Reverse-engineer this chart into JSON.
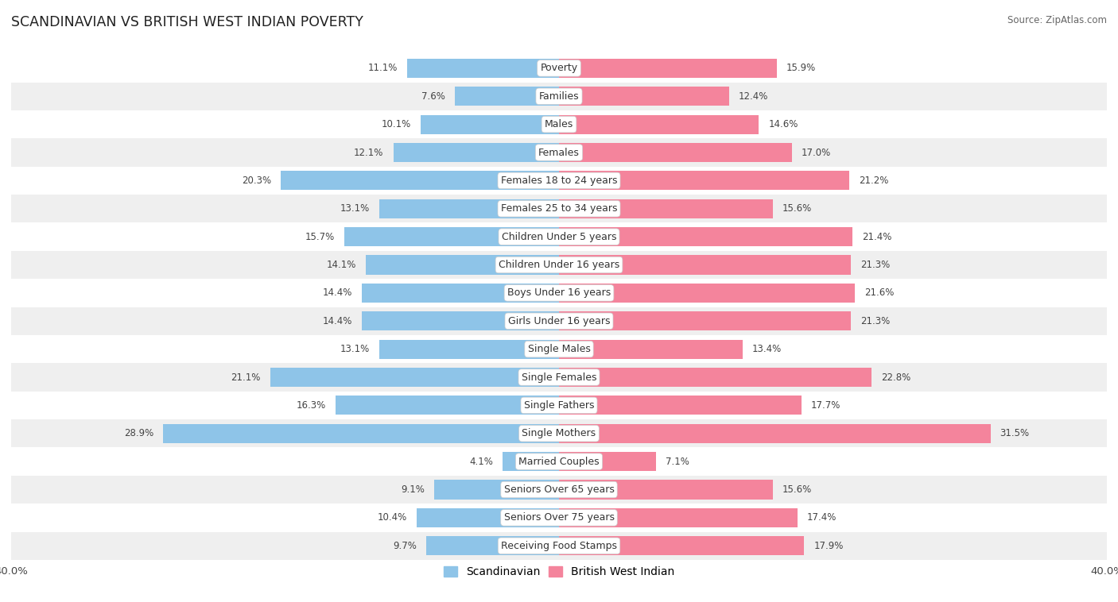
{
  "title": "SCANDINAVIAN VS BRITISH WEST INDIAN POVERTY",
  "source": "Source: ZipAtlas.com",
  "categories": [
    "Poverty",
    "Families",
    "Males",
    "Females",
    "Females 18 to 24 years",
    "Females 25 to 34 years",
    "Children Under 5 years",
    "Children Under 16 years",
    "Boys Under 16 years",
    "Girls Under 16 years",
    "Single Males",
    "Single Females",
    "Single Fathers",
    "Single Mothers",
    "Married Couples",
    "Seniors Over 65 years",
    "Seniors Over 75 years",
    "Receiving Food Stamps"
  ],
  "scandinavian": [
    11.1,
    7.6,
    10.1,
    12.1,
    20.3,
    13.1,
    15.7,
    14.1,
    14.4,
    14.4,
    13.1,
    21.1,
    16.3,
    28.9,
    4.1,
    9.1,
    10.4,
    9.7
  ],
  "british_west_indian": [
    15.9,
    12.4,
    14.6,
    17.0,
    21.2,
    15.6,
    21.4,
    21.3,
    21.6,
    21.3,
    13.4,
    22.8,
    17.7,
    31.5,
    7.1,
    15.6,
    17.4,
    17.9
  ],
  "xlim": 40.0,
  "bar_height": 0.68,
  "scandinavian_color": "#8EC4E8",
  "british_west_indian_color": "#F4849C",
  "bg_color": "#ffffff",
  "row_colors": [
    "#ffffff",
    "#efefef"
  ],
  "label_fontsize": 9.0,
  "value_fontsize": 8.5,
  "title_fontsize": 12.5
}
